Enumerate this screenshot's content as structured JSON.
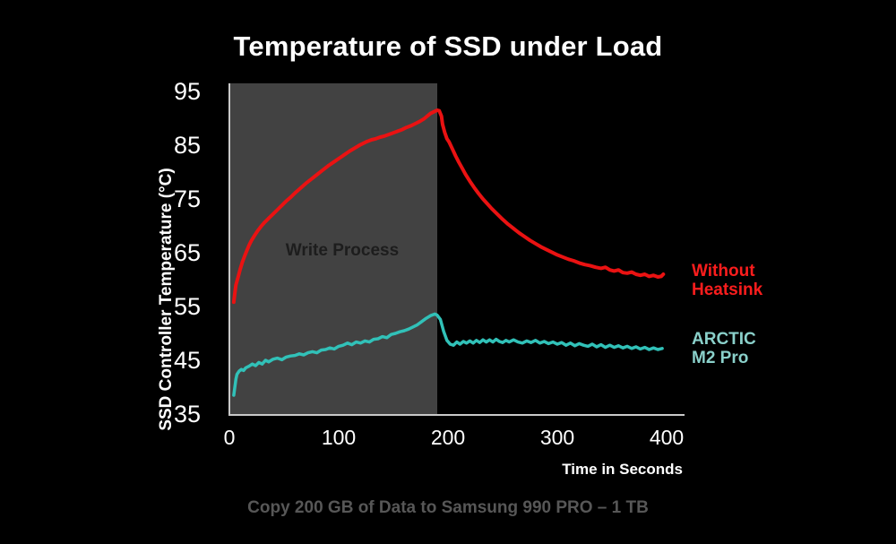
{
  "footer_caption": "Copy 200 GB of Data to Samsung 990 PRO – 1 TB",
  "colors": {
    "background": "#000000",
    "plot_region": "#424242",
    "axis": "#c9c9c9",
    "title_text": "#ffffff",
    "tick_text": "#ffffff",
    "annotation_text": "#1d1d1d",
    "caption_text": "#575757"
  },
  "chart_data": {
    "type": "line",
    "title": "Temperature of SSD under Load",
    "xlabel": "Time in Seconds",
    "ylabel": "SSD Controller Temperature (°C)",
    "xlim": [
      0,
      400
    ],
    "ylim": [
      35,
      95
    ],
    "x_ticks": [
      0,
      100,
      200,
      300,
      400
    ],
    "y_ticks": [
      95,
      85,
      75,
      65,
      55,
      45,
      35
    ],
    "grid": false,
    "legend_position": "right",
    "annotation": {
      "label": "Write Process",
      "x_start": 0,
      "x_end": 190
    },
    "series": [
      {
        "name": "Without Heatsink",
        "legend_lines": [
          "Without",
          "Heatsink"
        ],
        "color": "#ea1212",
        "label_color": "#fb1d1d",
        "points": [
          [
            4,
            55.8
          ],
          [
            5,
            57.5
          ],
          [
            6,
            59
          ],
          [
            8,
            60.5
          ],
          [
            10,
            62
          ],
          [
            12,
            63.3
          ],
          [
            14,
            64.4
          ],
          [
            16,
            65.4
          ],
          [
            18,
            66.4
          ],
          [
            20,
            67.2
          ],
          [
            23,
            68.2
          ],
          [
            26,
            69.1
          ],
          [
            29,
            69.9
          ],
          [
            32,
            70.6
          ],
          [
            36,
            71.4
          ],
          [
            40,
            72.2
          ],
          [
            44,
            73
          ],
          [
            48,
            73.8
          ],
          [
            52,
            74.6
          ],
          [
            56,
            75.3
          ],
          [
            60,
            76.1
          ],
          [
            65,
            77
          ],
          [
            70,
            77.9
          ],
          [
            75,
            78.7
          ],
          [
            80,
            79.5
          ],
          [
            85,
            80.3
          ],
          [
            90,
            81.1
          ],
          [
            95,
            81.8
          ],
          [
            100,
            82.5
          ],
          [
            105,
            83.2
          ],
          [
            110,
            83.9
          ],
          [
            115,
            84.5
          ],
          [
            120,
            85.1
          ],
          [
            125,
            85.6
          ],
          [
            130,
            86
          ],
          [
            134,
            86.2
          ],
          [
            138,
            86.5
          ],
          [
            142,
            86.7
          ],
          [
            146,
            87
          ],
          [
            150,
            87.3
          ],
          [
            154,
            87.6
          ],
          [
            158,
            87.9
          ],
          [
            162,
            88.3
          ],
          [
            166,
            88.6
          ],
          [
            170,
            89
          ],
          [
            174,
            89.4
          ],
          [
            178,
            89.9
          ],
          [
            181,
            90.4
          ],
          [
            184,
            90.9
          ],
          [
            187,
            91.2
          ],
          [
            190,
            91.5
          ],
          [
            192,
            91.4
          ],
          [
            194,
            90.4
          ],
          [
            195,
            88.9
          ],
          [
            197,
            87.4
          ],
          [
            199,
            86.2
          ],
          [
            201,
            85.6
          ],
          [
            204,
            84.3
          ],
          [
            207,
            83
          ],
          [
            210,
            81.8
          ],
          [
            213,
            80.7
          ],
          [
            216,
            79.6
          ],
          [
            220,
            78.3
          ],
          [
            224,
            77.1
          ],
          [
            228,
            76
          ],
          [
            232,
            75
          ],
          [
            236,
            74.1
          ],
          [
            240,
            73.2
          ],
          [
            245,
            72.2
          ],
          [
            250,
            71.2
          ],
          [
            255,
            70.3
          ],
          [
            260,
            69.5
          ],
          [
            265,
            68.7
          ],
          [
            270,
            68
          ],
          [
            275,
            67.3
          ],
          [
            280,
            66.7
          ],
          [
            285,
            66.1
          ],
          [
            290,
            65.6
          ],
          [
            295,
            65.1
          ],
          [
            300,
            64.6
          ],
          [
            305,
            64.2
          ],
          [
            310,
            63.8
          ],
          [
            315,
            63.5
          ],
          [
            320,
            63.1
          ],
          [
            325,
            62.8
          ],
          [
            330,
            62.6
          ],
          [
            335,
            62.3
          ],
          [
            340,
            62.1
          ],
          [
            344,
            62.3
          ],
          [
            348,
            61.8
          ],
          [
            352,
            61.6
          ],
          [
            356,
            61.8
          ],
          [
            360,
            61.3
          ],
          [
            364,
            61.2
          ],
          [
            368,
            61.4
          ],
          [
            372,
            61
          ],
          [
            376,
            60.8
          ],
          [
            380,
            61
          ],
          [
            384,
            60.6
          ],
          [
            388,
            60.8
          ],
          [
            392,
            60.5
          ],
          [
            395,
            60.6
          ],
          [
            397,
            61
          ]
        ]
      },
      {
        "name": "ARCTIC M2 Pro",
        "legend_lines": [
          "ARCTIC",
          "M2 Pro"
        ],
        "color": "#31c1b8",
        "label_color": "#8ad0ca",
        "points": [
          [
            4,
            38.5
          ],
          [
            5,
            40
          ],
          [
            6,
            41.5
          ],
          [
            7,
            42.4
          ],
          [
            9,
            43
          ],
          [
            11,
            43.3
          ],
          [
            13,
            43.1
          ],
          [
            15,
            43.6
          ],
          [
            18,
            43.9
          ],
          [
            21,
            44.3
          ],
          [
            24,
            44
          ],
          [
            27,
            44.6
          ],
          [
            30,
            44.3
          ],
          [
            33,
            45
          ],
          [
            36,
            44.7
          ],
          [
            40,
            45.2
          ],
          [
            44,
            45.4
          ],
          [
            48,
            45.1
          ],
          [
            52,
            45.6
          ],
          [
            56,
            45.8
          ],
          [
            60,
            45.9
          ],
          [
            64,
            46.2
          ],
          [
            68,
            46
          ],
          [
            72,
            46.4
          ],
          [
            76,
            46.6
          ],
          [
            80,
            46.4
          ],
          [
            84,
            46.9
          ],
          [
            88,
            47
          ],
          [
            92,
            47.3
          ],
          [
            96,
            47.1
          ],
          [
            100,
            47.6
          ],
          [
            104,
            47.8
          ],
          [
            108,
            48.2
          ],
          [
            112,
            47.9
          ],
          [
            116,
            48.4
          ],
          [
            120,
            48.2
          ],
          [
            124,
            48.6
          ],
          [
            128,
            48.4
          ],
          [
            132,
            48.9
          ],
          [
            136,
            49
          ],
          [
            140,
            49.4
          ],
          [
            144,
            49.2
          ],
          [
            148,
            49.8
          ],
          [
            152,
            50
          ],
          [
            156,
            50.3
          ],
          [
            160,
            50.5
          ],
          [
            164,
            50.8
          ],
          [
            168,
            51.2
          ],
          [
            172,
            51.6
          ],
          [
            176,
            52.2
          ],
          [
            180,
            52.8
          ],
          [
            184,
            53.3
          ],
          [
            188,
            53.6
          ],
          [
            190,
            53.4
          ],
          [
            193,
            52.6
          ],
          [
            196,
            50.4
          ],
          [
            199,
            48.7
          ],
          [
            202,
            48
          ],
          [
            205,
            47.8
          ],
          [
            208,
            48.4
          ],
          [
            211,
            48
          ],
          [
            214,
            48.5
          ],
          [
            217,
            48.2
          ],
          [
            220,
            48.6
          ],
          [
            223,
            48.2
          ],
          [
            226,
            48.7
          ],
          [
            229,
            48.3
          ],
          [
            232,
            48.8
          ],
          [
            235,
            48.4
          ],
          [
            238,
            48.8
          ],
          [
            241,
            48.4
          ],
          [
            244,
            48.9
          ],
          [
            247,
            48.5
          ],
          [
            250,
            48.3
          ],
          [
            253,
            48.7
          ],
          [
            256,
            48.4
          ],
          [
            260,
            48.8
          ],
          [
            264,
            48.4
          ],
          [
            268,
            48.2
          ],
          [
            272,
            48.6
          ],
          [
            276,
            48.3
          ],
          [
            280,
            48.7
          ],
          [
            284,
            48.2
          ],
          [
            288,
            48.5
          ],
          [
            292,
            48.1
          ],
          [
            296,
            48.4
          ],
          [
            300,
            48
          ],
          [
            304,
            48.3
          ],
          [
            308,
            47.8
          ],
          [
            312,
            48.2
          ],
          [
            316,
            47.7
          ],
          [
            320,
            48.1
          ],
          [
            324,
            47.8
          ],
          [
            328,
            47.6
          ],
          [
            332,
            48
          ],
          [
            336,
            47.5
          ],
          [
            340,
            47.9
          ],
          [
            344,
            47.4
          ],
          [
            348,
            47.8
          ],
          [
            352,
            47.4
          ],
          [
            356,
            47.7
          ],
          [
            360,
            47.3
          ],
          [
            364,
            47.6
          ],
          [
            368,
            47.2
          ],
          [
            372,
            47.5
          ],
          [
            376,
            47.1
          ],
          [
            380,
            47.4
          ],
          [
            384,
            47
          ],
          [
            388,
            47.3
          ],
          [
            392,
            47
          ],
          [
            396,
            47.2
          ]
        ]
      }
    ]
  }
}
